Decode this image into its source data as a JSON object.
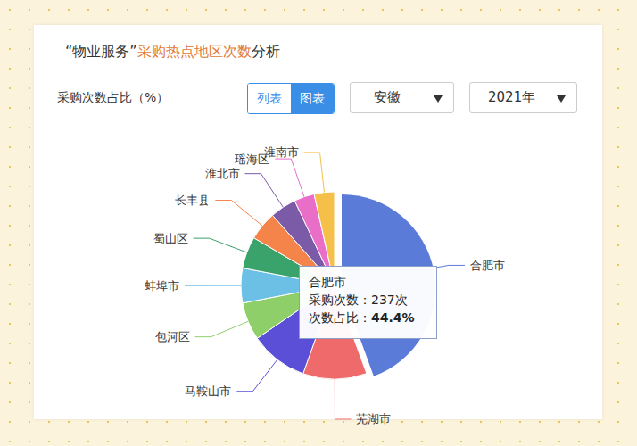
{
  "header": {
    "title": [
      "“物业服务”",
      "采购热点地区次数",
      "分析"
    ],
    "title_colors": [
      "#333333",
      "#e07b39",
      "#333333"
    ],
    "buttons": [
      "列表",
      "图表"
    ],
    "selects": [
      "安徽",
      "2021年"
    ]
  },
  "chart_data": {
    "type": "pie",
    "subtitle": "采购次数占比（%）",
    "categories": [
      "合肥市",
      "芜湖市",
      "马鞍山市",
      "包河区",
      "蚌埠市",
      "蜀山区",
      "长丰县",
      "淮北市",
      "瑶海区",
      "淮南市"
    ],
    "values": [
      44.4,
      11,
      10,
      6.5,
      6,
      5.5,
      5,
      4.5,
      3.5,
      3.5
    ],
    "colors": [
      "#5b7bd8",
      "#ef6b6b",
      "#5a4fd6",
      "#8fcf6a",
      "#6cc0e5",
      "#3aa36b",
      "#f5844a",
      "#7b5aa8",
      "#e86ec8",
      "#f5c04a"
    ],
    "legend": false,
    "tooltip": {
      "name": "合肥市",
      "count_label": "采购次数：",
      "count": 237,
      "count_unit": "次",
      "share_label": "次数占比：",
      "share": 44.4,
      "share_unit": "%"
    }
  }
}
